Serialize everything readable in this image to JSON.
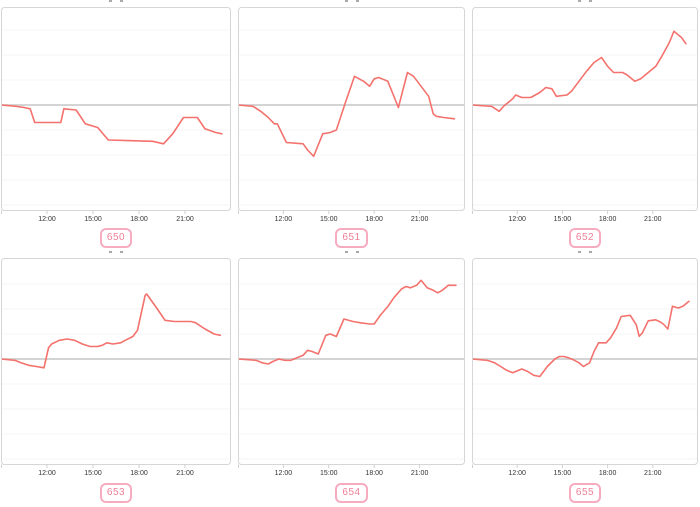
{
  "style": {
    "page_background": "#ffffff",
    "line_color": "#f4726d",
    "reference_line_color": "#d4d4d4",
    "grid_color": "#f4f4f4",
    "panel_border_color": "#d6d6d6",
    "tick_color": "#cfcfcf",
    "tick_text_color": "#333333",
    "badge_border_color": "#f7abbf",
    "badge_text_color": "#ee7f97"
  },
  "axis": {
    "x_tick_labels": [
      "12:00",
      "15:00",
      "18:00",
      "21:00"
    ],
    "x_tick_hours": [
      12,
      15,
      18,
      21
    ],
    "x_range_hours": [
      9,
      24
    ],
    "y_axis_labels_visible": false,
    "reference_line": "horizontal gray line at value 0"
  },
  "chart_data": [
    {
      "type": "line",
      "label": "650",
      "y_unit": "relative units vs reference line (1 unit = 1 gridline)",
      "points": [
        [
          9,
          0
        ],
        [
          10,
          -0.05
        ],
        [
          10.5,
          -0.1
        ],
        [
          10.9,
          -0.15
        ],
        [
          11.2,
          -0.7
        ],
        [
          12.9,
          -0.7
        ],
        [
          13.1,
          -0.15
        ],
        [
          13.9,
          -0.2
        ],
        [
          14.5,
          -0.75
        ],
        [
          15.3,
          -0.9
        ],
        [
          16,
          -1.4
        ],
        [
          18.9,
          -1.45
        ],
        [
          19.6,
          -1.55
        ],
        [
          20.2,
          -1.15
        ],
        [
          20.9,
          -0.5
        ],
        [
          21.8,
          -0.5
        ],
        [
          22.3,
          -0.95
        ],
        [
          23,
          -1.1
        ],
        [
          23.4,
          -1.15
        ]
      ]
    },
    {
      "type": "line",
      "label": "651",
      "y_unit": "relative units vs reference line (1 unit = 1 gridline)",
      "points": [
        [
          9,
          0
        ],
        [
          10,
          -0.05
        ],
        [
          10.5,
          -0.25
        ],
        [
          11,
          -0.5
        ],
        [
          11.4,
          -0.75
        ],
        [
          11.6,
          -0.75
        ],
        [
          12.2,
          -1.5
        ],
        [
          13.3,
          -1.55
        ],
        [
          13.6,
          -1.8
        ],
        [
          14,
          -2.05
        ],
        [
          14.6,
          -1.15
        ],
        [
          15.1,
          -1.1
        ],
        [
          15.5,
          -1
        ],
        [
          16.1,
          0.1
        ],
        [
          16.7,
          1.15
        ],
        [
          17.3,
          0.95
        ],
        [
          17.7,
          0.75
        ],
        [
          18,
          1.05
        ],
        [
          18.3,
          1.1
        ],
        [
          18.9,
          0.95
        ],
        [
          19.6,
          -0.1
        ],
        [
          20.2,
          1.3
        ],
        [
          20.6,
          1.15
        ],
        [
          21.1,
          0.75
        ],
        [
          21.6,
          0.35
        ],
        [
          21.9,
          -0.35
        ],
        [
          22.1,
          -0.45
        ],
        [
          22.6,
          -0.5
        ],
        [
          23.3,
          -0.55
        ]
      ]
    },
    {
      "type": "line",
      "label": "652",
      "y_unit": "relative units vs reference line (1 unit = 1 gridline)",
      "points": [
        [
          9,
          0
        ],
        [
          10.3,
          -0.05
        ],
        [
          10.8,
          -0.25
        ],
        [
          11.1,
          -0.05
        ],
        [
          11.7,
          0.25
        ],
        [
          11.9,
          0.4
        ],
        [
          12.3,
          0.3
        ],
        [
          12.9,
          0.3
        ],
        [
          13.5,
          0.5
        ],
        [
          13.9,
          0.7
        ],
        [
          14.3,
          0.65
        ],
        [
          14.6,
          0.35
        ],
        [
          15.3,
          0.4
        ],
        [
          15.6,
          0.55
        ],
        [
          16.1,
          0.95
        ],
        [
          16.6,
          1.35
        ],
        [
          17.1,
          1.7
        ],
        [
          17.6,
          1.9
        ],
        [
          18,
          1.55
        ],
        [
          18.4,
          1.3
        ],
        [
          19,
          1.3
        ],
        [
          19.3,
          1.2
        ],
        [
          19.8,
          0.95
        ],
        [
          20.2,
          1.05
        ],
        [
          20.6,
          1.25
        ],
        [
          21.2,
          1.55
        ],
        [
          21.6,
          1.95
        ],
        [
          22.1,
          2.5
        ],
        [
          22.4,
          2.95
        ],
        [
          22.9,
          2.7
        ],
        [
          23.2,
          2.45
        ]
      ]
    },
    {
      "type": "line",
      "label": "653",
      "y_unit": "relative units vs reference line (1 unit = 1 gridline)",
      "points": [
        [
          9,
          0
        ],
        [
          9.9,
          -0.05
        ],
        [
          10.3,
          -0.15
        ],
        [
          10.8,
          -0.25
        ],
        [
          11.3,
          -0.3
        ],
        [
          11.8,
          -0.35
        ],
        [
          12.1,
          0.45
        ],
        [
          12.3,
          0.6
        ],
        [
          12.8,
          0.75
        ],
        [
          13.3,
          0.8
        ],
        [
          13.8,
          0.75
        ],
        [
          14.3,
          0.6
        ],
        [
          14.8,
          0.5
        ],
        [
          15.3,
          0.5
        ],
        [
          15.6,
          0.55
        ],
        [
          15.9,
          0.65
        ],
        [
          16.3,
          0.6
        ],
        [
          16.8,
          0.65
        ],
        [
          17.1,
          0.75
        ],
        [
          17.6,
          0.9
        ],
        [
          17.9,
          1.15
        ],
        [
          18.4,
          2.55
        ],
        [
          18.5,
          2.6
        ],
        [
          19.2,
          2
        ],
        [
          19.7,
          1.55
        ],
        [
          20.3,
          1.5
        ],
        [
          21.4,
          1.5
        ],
        [
          21.7,
          1.45
        ],
        [
          22.3,
          1.2
        ],
        [
          22.9,
          1
        ],
        [
          23.3,
          0.95
        ]
      ]
    },
    {
      "type": "line",
      "label": "654",
      "y_unit": "relative units vs reference line (1 unit = 1 gridline)",
      "points": [
        [
          9,
          0
        ],
        [
          10.2,
          -0.05
        ],
        [
          10.6,
          -0.15
        ],
        [
          11,
          -0.2
        ],
        [
          11.3,
          -0.1
        ],
        [
          11.7,
          0
        ],
        [
          12.1,
          -0.05
        ],
        [
          12.5,
          -0.05
        ],
        [
          12.9,
          0.05
        ],
        [
          13.3,
          0.15
        ],
        [
          13.6,
          0.35
        ],
        [
          13.9,
          0.3
        ],
        [
          14.3,
          0.2
        ],
        [
          14.8,
          0.95
        ],
        [
          15.1,
          1
        ],
        [
          15.5,
          0.9
        ],
        [
          16,
          1.6
        ],
        [
          16.6,
          1.5
        ],
        [
          17.1,
          1.45
        ],
        [
          17.7,
          1.4
        ],
        [
          18,
          1.4
        ],
        [
          18.4,
          1.75
        ],
        [
          18.9,
          2.1
        ],
        [
          19.3,
          2.45
        ],
        [
          19.8,
          2.8
        ],
        [
          20.1,
          2.9
        ],
        [
          20.4,
          2.85
        ],
        [
          20.8,
          2.95
        ],
        [
          21.1,
          3.15
        ],
        [
          21.5,
          2.85
        ],
        [
          21.9,
          2.75
        ],
        [
          22.2,
          2.65
        ],
        [
          22.5,
          2.75
        ],
        [
          22.9,
          2.95
        ],
        [
          23.4,
          2.95
        ]
      ]
    },
    {
      "type": "line",
      "label": "655",
      "y_unit": "relative units vs reference line (1 unit = 1 gridline)",
      "points": [
        [
          9,
          0
        ],
        [
          10,
          -0.05
        ],
        [
          10.5,
          -0.15
        ],
        [
          10.9,
          -0.3
        ],
        [
          11.3,
          -0.45
        ],
        [
          11.7,
          -0.55
        ],
        [
          12.1,
          -0.45
        ],
        [
          12.3,
          -0.4
        ],
        [
          12.7,
          -0.5
        ],
        [
          13.1,
          -0.65
        ],
        [
          13.5,
          -0.7
        ],
        [
          14,
          -0.3
        ],
        [
          14.5,
          0
        ],
        [
          14.8,
          0.1
        ],
        [
          15.1,
          0.1
        ],
        [
          15.4,
          0.05
        ],
        [
          15.8,
          -0.05
        ],
        [
          16.1,
          -0.15
        ],
        [
          16.4,
          -0.3
        ],
        [
          16.8,
          -0.15
        ],
        [
          17.1,
          0.3
        ],
        [
          17.4,
          0.65
        ],
        [
          17.9,
          0.65
        ],
        [
          18.2,
          0.85
        ],
        [
          18.6,
          1.25
        ],
        [
          18.9,
          1.7
        ],
        [
          19.5,
          1.75
        ],
        [
          19.9,
          1.37
        ],
        [
          20.1,
          0.91
        ],
        [
          20.3,
          1.04
        ],
        [
          20.7,
          1.53
        ],
        [
          21.2,
          1.57
        ],
        [
          21.5,
          1.48
        ],
        [
          21.7,
          1.4
        ],
        [
          22,
          1.2
        ],
        [
          22.3,
          2.11
        ],
        [
          22.7,
          2.04
        ],
        [
          23,
          2.11
        ],
        [
          23.4,
          2.31
        ]
      ]
    }
  ]
}
